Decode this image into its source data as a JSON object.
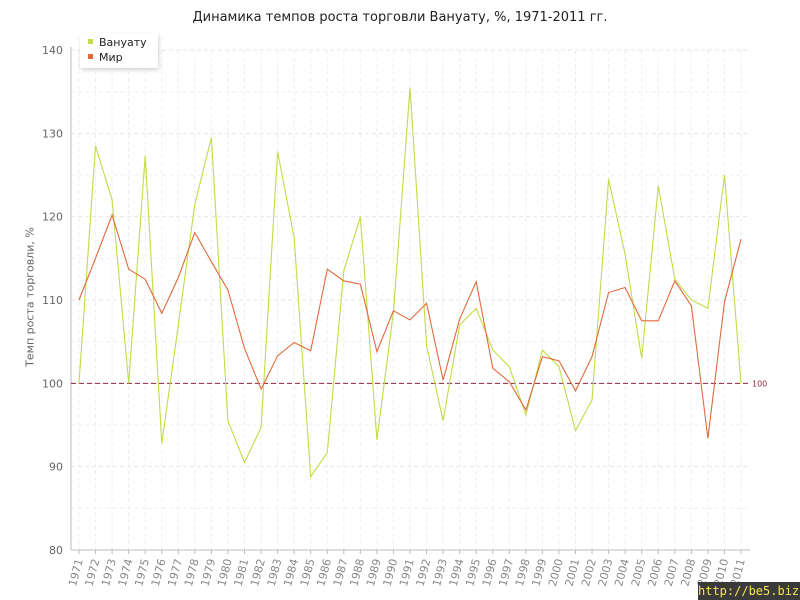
{
  "chart_data": {
    "type": "line",
    "title": "Динамика темпов роста торговли Вануату, %, 1971-2011 гг.",
    "ylabel": "Темп роста торговли, %",
    "xlabel": "",
    "ylim": [
      80,
      140
    ],
    "yticks": [
      80,
      90,
      100,
      110,
      120,
      130,
      140
    ],
    "reference_line": {
      "value": 100,
      "label": "100",
      "color": "#8a2a3a"
    },
    "grid": true,
    "legend_position": "top-left",
    "categories": [
      "1971",
      "1972",
      "1973",
      "1974",
      "1975",
      "1976",
      "1977",
      "1978",
      "1979",
      "1980",
      "1981",
      "1982",
      "1983",
      "1984",
      "1985",
      "1986",
      "1987",
      "1988",
      "1989",
      "1990",
      "1991",
      "1992",
      "1993",
      "1994",
      "1995",
      "1996",
      "1997",
      "1998",
      "1999",
      "2000",
      "2001",
      "2002",
      "2003",
      "2004",
      "2005",
      "2006",
      "2007",
      "2008",
      "2009",
      "2010",
      "2011"
    ],
    "series": [
      {
        "name": "Вануату",
        "color": "#c0dc46",
        "values": [
          100.0,
          128.5,
          122.0,
          100.0,
          127.3,
          92.8,
          107.0,
          121.5,
          129.5,
          95.5,
          90.5,
          94.7,
          127.8,
          117.5,
          88.8,
          91.7,
          113.5,
          120.0,
          93.2,
          108.5,
          135.5,
          104.5,
          95.5,
          107.0,
          109.0,
          104.0,
          102.0,
          96.2,
          104.0,
          102.0,
          94.3,
          98.0,
          124.5,
          115.5,
          103.0,
          123.7,
          112.5,
          110.0,
          109.0,
          125.0,
          100.0
        ]
      },
      {
        "name": "Мир",
        "color": "#e06a3c",
        "values": [
          110.0,
          115.0,
          120.2,
          113.7,
          112.5,
          108.4,
          112.7,
          118.1,
          114.6,
          111.2,
          104.2,
          99.3,
          103.3,
          104.9,
          103.9,
          113.7,
          112.3,
          111.9,
          103.8,
          108.7,
          107.6,
          109.6,
          100.4,
          107.7,
          112.2,
          101.8,
          100.2,
          96.8,
          103.2,
          102.7,
          99.1,
          103.2,
          110.9,
          111.5,
          107.5,
          107.5,
          112.3,
          109.3,
          93.4,
          109.8,
          117.3
        ]
      }
    ]
  },
  "watermark": "http://be5.biz/"
}
